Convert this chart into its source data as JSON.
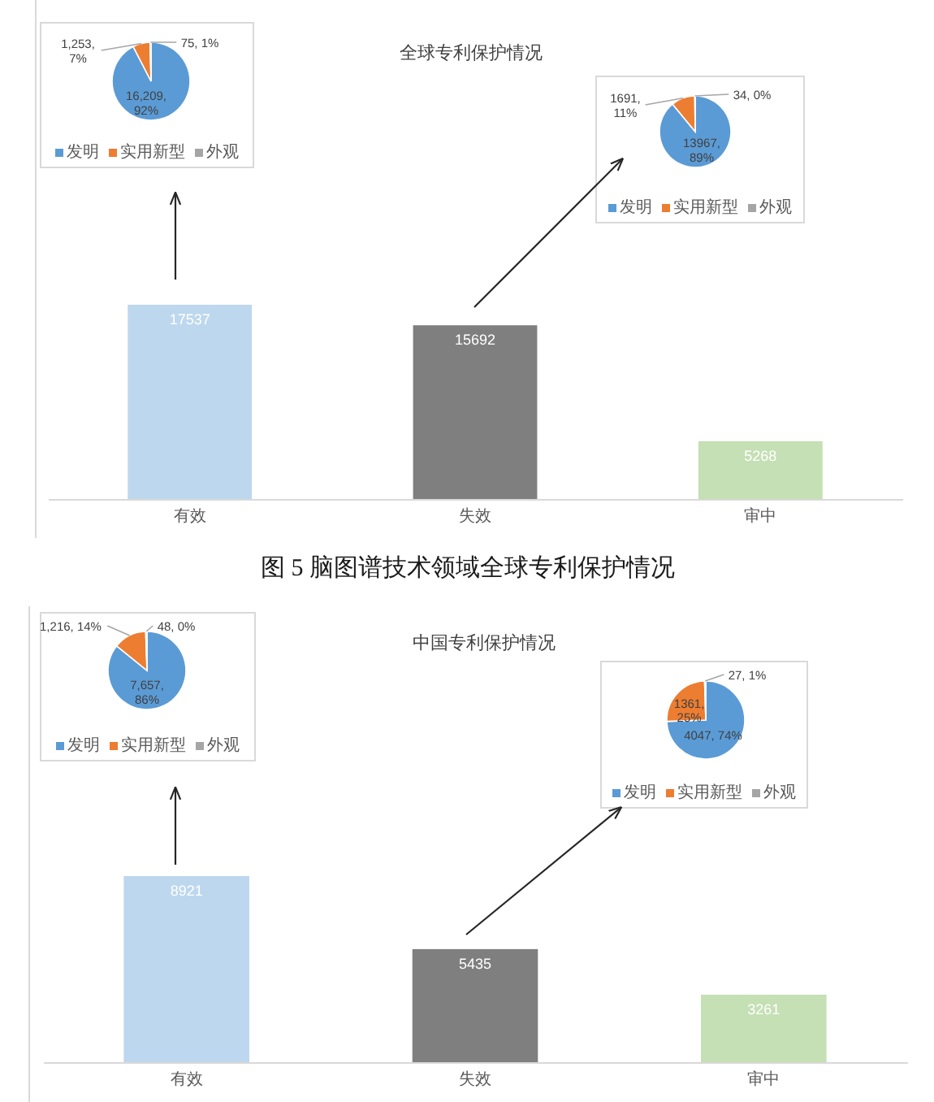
{
  "chart_data": [
    {
      "type": "bar",
      "title": "全球专利保护情况",
      "categories": [
        "有效",
        "失效",
        "审中"
      ],
      "values": [
        17537,
        15692,
        5268
      ],
      "colors": [
        "#bdd7ee",
        "#7f7f7f",
        "#c5e0b4"
      ],
      "data_labels": true,
      "annotations": [
        "图 5 脑图谱技术领域全球专利保护情况"
      ]
    },
    {
      "type": "pie",
      "categories": [
        "发明",
        "实用新型",
        "外观"
      ],
      "values": [
        16209,
        1253,
        75
      ],
      "colors": [
        "#5b9bd5",
        "#ed7d31",
        "#a5a5a5"
      ],
      "value_labels": [
        "16,209, 92%",
        "1,253, 7%",
        "75, 1%"
      ],
      "legend": "bottom"
    },
    {
      "type": "pie",
      "categories": [
        "发明",
        "实用新型",
        "外观"
      ],
      "values": [
        13967,
        1691,
        34
      ],
      "colors": [
        "#5b9bd5",
        "#ed7d31",
        "#a5a5a5"
      ],
      "value_labels": [
        "13967, 89%",
        "1691, 11%",
        "34, 0%"
      ],
      "legend": "bottom"
    },
    {
      "type": "bar",
      "title": "中国专利保护情况",
      "categories": [
        "有效",
        "失效",
        "审中"
      ],
      "values": [
        8921,
        5435,
        3261
      ],
      "colors": [
        "#bdd7ee",
        "#7f7f7f",
        "#c5e0b4"
      ],
      "data_labels": true
    },
    {
      "type": "pie",
      "categories": [
        "发明",
        "实用新型",
        "外观"
      ],
      "values": [
        7657,
        1216,
        48
      ],
      "colors": [
        "#5b9bd5",
        "#ed7d31",
        "#a5a5a5"
      ],
      "value_labels": [
        "7,657, 86%",
        "1,216, 14%",
        "48, 0%"
      ],
      "legend": "bottom"
    },
    {
      "type": "pie",
      "categories": [
        "发明",
        "实用新型",
        "外观"
      ],
      "values": [
        4047,
        1361,
        27
      ],
      "colors": [
        "#5b9bd5",
        "#ed7d31",
        "#a5a5a5"
      ],
      "value_labels": [
        "4047, 74%",
        "1361, 25%",
        "27, 1%"
      ],
      "legend": "bottom"
    }
  ]
}
